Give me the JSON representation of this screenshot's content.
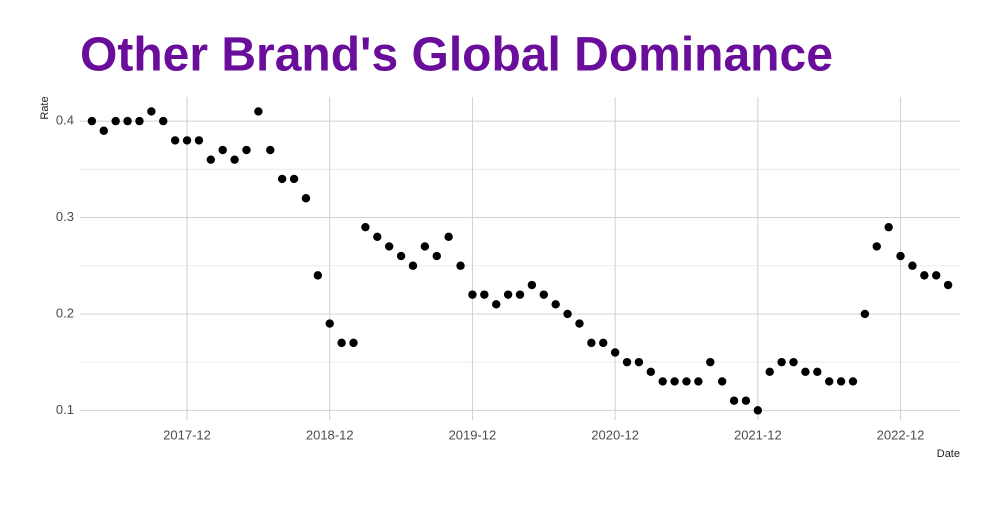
{
  "chart_data": {
    "type": "scatter",
    "title": "Other Brand's Global Dominance",
    "x_label": "Date",
    "y_label": "Rate",
    "x": [
      "2017-04",
      "2017-05",
      "2017-06",
      "2017-07",
      "2017-08",
      "2017-09",
      "2017-10",
      "2017-11",
      "2017-12",
      "2018-01",
      "2018-02",
      "2018-03",
      "2018-04",
      "2018-05",
      "2018-06",
      "2018-07",
      "2018-08",
      "2018-09",
      "2018-10",
      "2018-11",
      "2018-12",
      "2019-01",
      "2019-02",
      "2019-03",
      "2019-04",
      "2019-05",
      "2019-06",
      "2019-07",
      "2019-08",
      "2019-09",
      "2019-10",
      "2019-11",
      "2019-12",
      "2020-01",
      "2020-02",
      "2020-03",
      "2020-04",
      "2020-05",
      "2020-06",
      "2020-07",
      "2020-08",
      "2020-09",
      "2020-10",
      "2020-11",
      "2020-12",
      "2021-01",
      "2021-02",
      "2021-03",
      "2021-04",
      "2021-05",
      "2021-06",
      "2021-07",
      "2021-08",
      "2021-09",
      "2021-10",
      "2021-11",
      "2021-12",
      "2022-01",
      "2022-02",
      "2022-03",
      "2022-04",
      "2022-05",
      "2022-06",
      "2022-07",
      "2022-08",
      "2022-09",
      "2022-10",
      "2022-11",
      "2022-12",
      "2023-01",
      "2023-02",
      "2023-03",
      "2023-04"
    ],
    "values": [
      0.4,
      0.39,
      0.4,
      0.4,
      0.4,
      0.41,
      0.4,
      0.38,
      0.38,
      0.38,
      0.36,
      0.37,
      0.36,
      0.37,
      0.41,
      0.37,
      0.34,
      0.34,
      0.32,
      0.24,
      0.19,
      0.17,
      0.17,
      0.29,
      0.28,
      0.27,
      0.26,
      0.25,
      0.27,
      0.26,
      0.28,
      0.25,
      0.22,
      0.22,
      0.21,
      0.22,
      0.22,
      0.23,
      0.22,
      0.21,
      0.2,
      0.19,
      0.17,
      0.17,
      0.16,
      0.15,
      0.15,
      0.14,
      0.13,
      0.13,
      0.13,
      0.13,
      0.15,
      0.13,
      0.11,
      0.11,
      0.1,
      0.14,
      0.15,
      0.15,
      0.14,
      0.14,
      0.13,
      0.13,
      0.13,
      0.2,
      0.27,
      0.29,
      0.26,
      0.25,
      0.24,
      0.24,
      0.23
    ],
    "color": "#000000",
    "title_color": "#6a0d9a",
    "xlim": [
      "2017-03",
      "2023-05"
    ],
    "xticks": [
      "2017-12",
      "2018-12",
      "2019-12",
      "2020-12",
      "2021-12",
      "2022-12"
    ],
    "ylim": [
      0.09,
      0.425
    ],
    "yticks": [
      0.1,
      0.2,
      0.3,
      0.4
    ],
    "y_minor_grid": [
      0.15,
      0.25,
      0.35
    ],
    "grid": true
  }
}
